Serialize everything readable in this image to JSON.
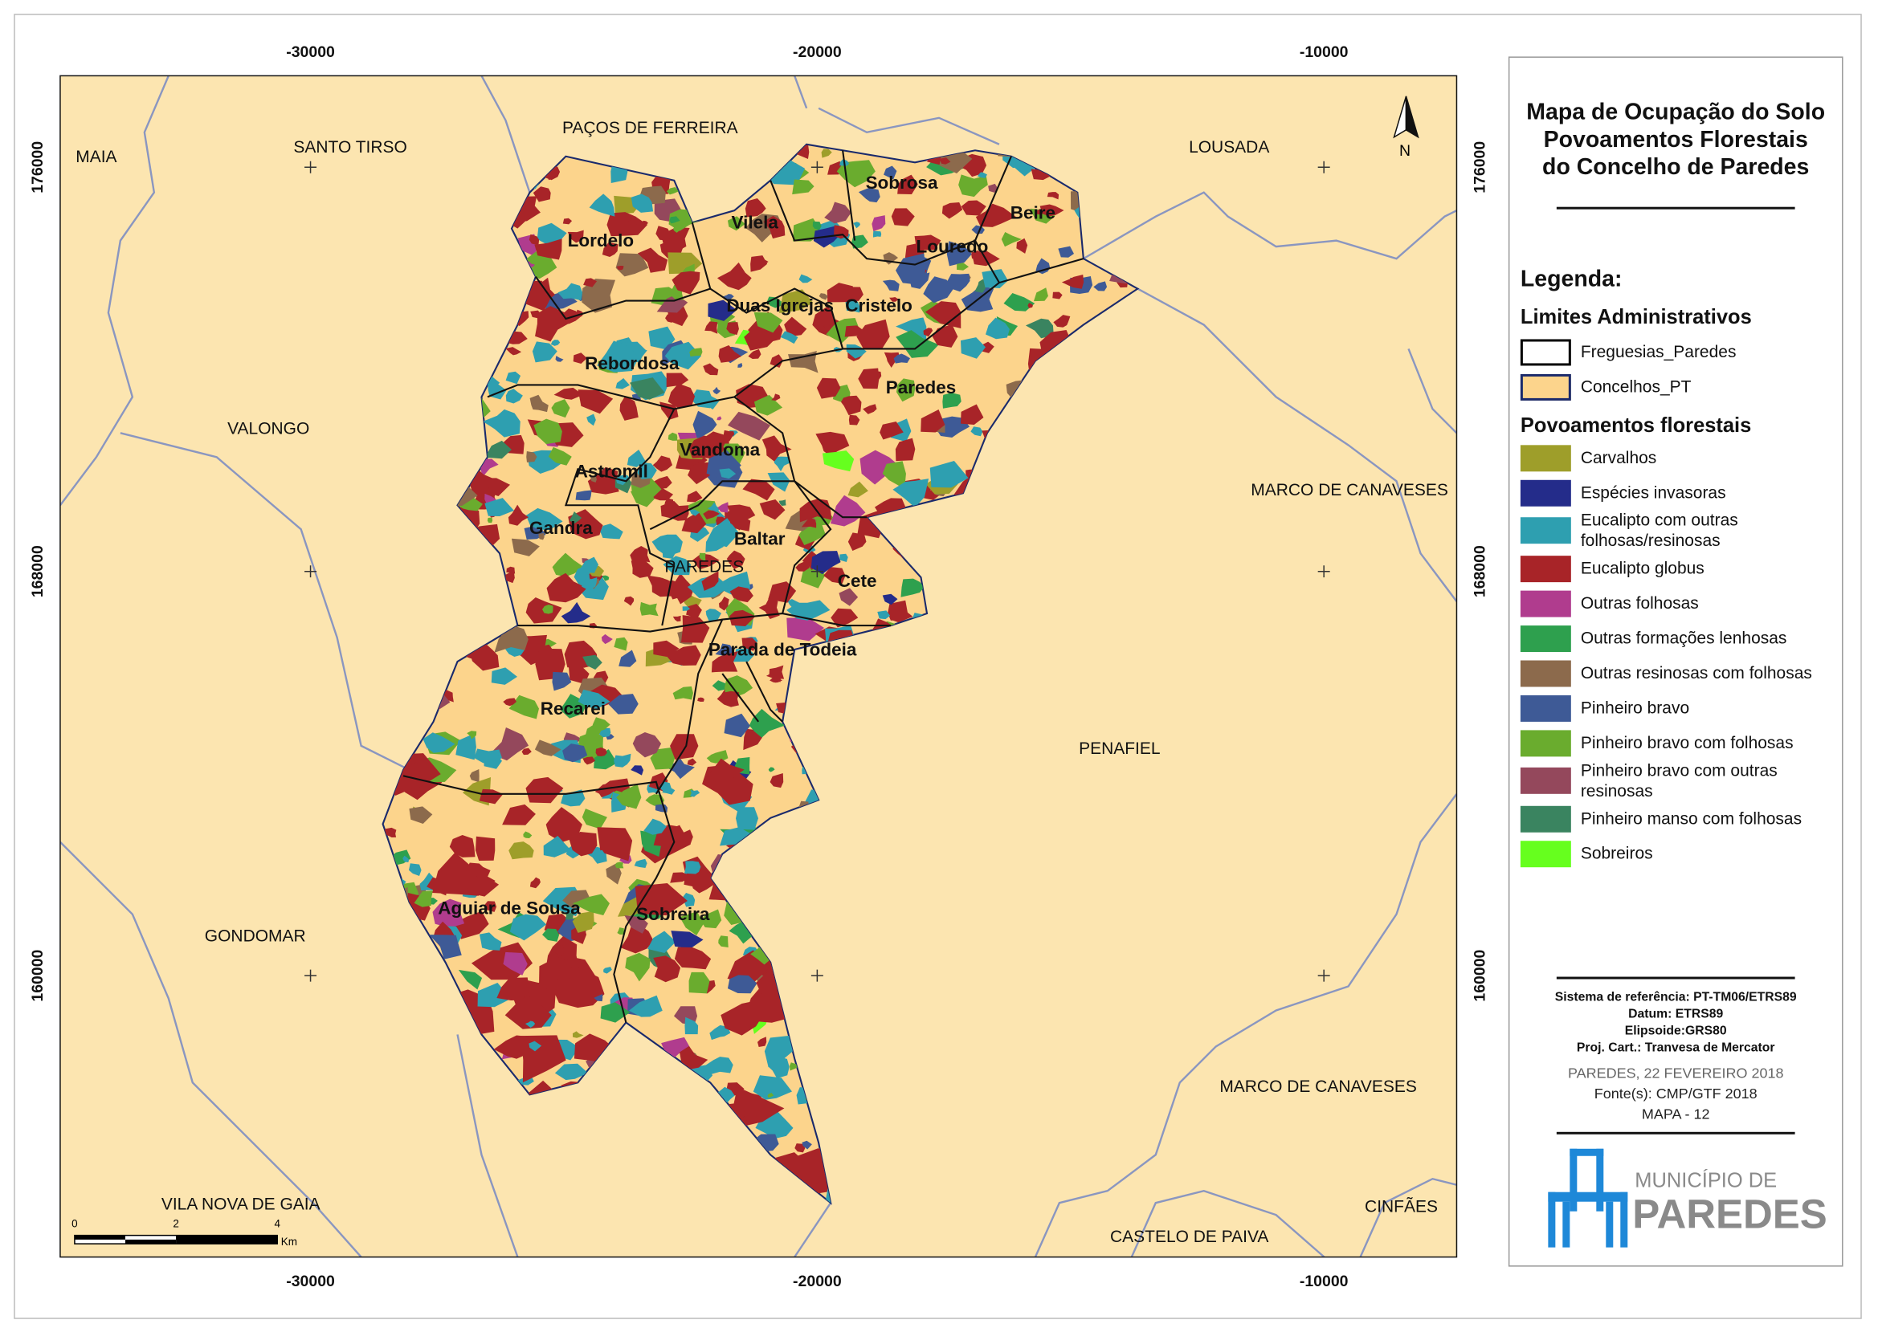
{
  "title": [
    "Mapa de Ocupação do Solo",
    "Povoamentos Florestais",
    "do Concelho de Paredes"
  ],
  "map": {
    "xlim": [
      -34940,
      -7380
    ],
    "ylim": [
      154430,
      177810
    ],
    "xticks": [
      -30000,
      -20000,
      -10000
    ],
    "yticks": [
      176000,
      168000,
      160000
    ],
    "neighbours": [
      "MAIA",
      "SANTO TIRSO",
      "PAÇOS DE FERREIRA",
      "LOUSADA",
      "VALONGO",
      "MARCO DE CANAVESES",
      "PENAFIEL",
      "GONDOMAR",
      "MARCO DE CANAVESES",
      "VILA NOVA DE GAIA",
      "CASTELO DE PAIVA",
      "CINFÃES"
    ],
    "municipality": "PAREDES",
    "parishes": [
      "Lordelo",
      "Vilela",
      "Sobrosa",
      "Beire",
      "Louredo",
      "Duas Igrejas",
      "Cristelo",
      "Rebordosa",
      "Paredes",
      "Vandoma",
      "Astromil",
      "Gandra",
      "Baltar",
      "Cete",
      "Parada de Todeia",
      "Recarei",
      "Aguiar de Sousa",
      "Sobreira"
    ],
    "north": "N",
    "scale_bar": {
      "ticks": [
        0,
        2,
        4
      ],
      "unit": "Km"
    }
  },
  "legend": {
    "heading": "Legenda:",
    "admin_title": "Limites Administrativos",
    "admin": [
      {
        "name": "Freguesias_Paredes",
        "fill": "#ffffff",
        "stroke": "#000000"
      },
      {
        "name": "Concelhos_PT",
        "fill": "#fcd48c",
        "stroke": "#1a2a6c"
      }
    ],
    "forest_title": "Povoamentos florestais",
    "forest": [
      {
        "name": "Carvalhos",
        "color": "#9e9e2a"
      },
      {
        "name": "Espécies invasoras",
        "color": "#242c8a"
      },
      {
        "name": "Eucalipto com outras folhosas/resinosas",
        "color": "#2e9fb0"
      },
      {
        "name": "Eucalipto globus",
        "color": "#a82428"
      },
      {
        "name": "Outras folhosas",
        "color": "#b03c8e"
      },
      {
        "name": "Outras formações lenhosas",
        "color": "#2ea04e"
      },
      {
        "name": "Outras resinosas com folhosas",
        "color": "#8c6a4c"
      },
      {
        "name": "Pinheiro bravo",
        "color": "#3e5a96"
      },
      {
        "name": "Pinheiro bravo com folhosas",
        "color": "#6aac2e"
      },
      {
        "name": "Pinheiro bravo com outras resinosas",
        "color": "#94485c"
      },
      {
        "name": "Pinheiro manso com folhosas",
        "color": "#3a8460"
      },
      {
        "name": "Sobreiros",
        "color": "#66ff1e"
      }
    ]
  },
  "footer": {
    "reference": [
      "Sistema de referência: PT-TM06/ETRS89",
      "Datum: ETRS89",
      "Elipsoide:GRS80",
      "Proj. Cart.: Tranvesa de Mercator"
    ],
    "date": "PAREDES, 22 FEVEREIRO 2018",
    "source": "Fonte(s): CMP/GTF 2018",
    "map_number": "MAPA - 12"
  },
  "logo": {
    "line1": "MUNICÍPIO DE",
    "line2": "PAREDES"
  }
}
